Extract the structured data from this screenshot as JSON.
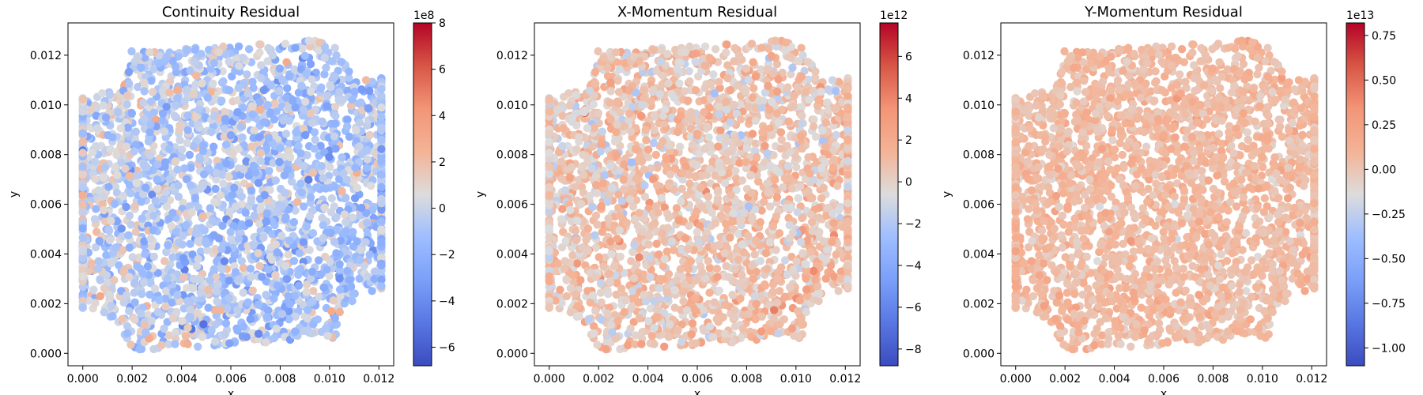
{
  "chart_data": [
    {
      "type": "scatter",
      "title": "Continuity Residual",
      "xlabel": "x",
      "ylabel": "y",
      "xlim": [
        -0.0006,
        0.0126
      ],
      "ylim": [
        -0.0005,
        0.0133
      ],
      "xticks": [
        "0.000",
        "0.002",
        "0.004",
        "0.006",
        "0.008",
        "0.010",
        "0.012"
      ],
      "yticks": [
        "0.000",
        "0.002",
        "0.004",
        "0.006",
        "0.008",
        "0.010",
        "0.012"
      ],
      "colormap": "coolwarm",
      "colorbar": {
        "exponent": "1e8",
        "vmin": -6.8,
        "vmax": 8.0,
        "ticks": [
          "−6",
          "−4",
          "−2",
          "0",
          "2",
          "4",
          "6",
          "8"
        ]
      },
      "field": "continuity"
    },
    {
      "type": "scatter",
      "title": "X-Momentum Residual",
      "xlabel": "x",
      "ylabel": "y",
      "xlim": [
        -0.0006,
        0.0126
      ],
      "ylim": [
        -0.0005,
        0.0133
      ],
      "xticks": [
        "0.000",
        "0.002",
        "0.004",
        "0.006",
        "0.008",
        "0.010",
        "0.012"
      ],
      "yticks": [
        "0.000",
        "0.002",
        "0.004",
        "0.006",
        "0.008",
        "0.010",
        "0.012"
      ],
      "colormap": "coolwarm",
      "colorbar": {
        "exponent": "1e12",
        "vmin": -8.8,
        "vmax": 7.6,
        "ticks": [
          "−8",
          "−6",
          "−4",
          "−2",
          "0",
          "2",
          "4",
          "6"
        ]
      },
      "field": "xmomentum"
    },
    {
      "type": "scatter",
      "title": "Y-Momentum Residual",
      "xlabel": "x",
      "ylabel": "y",
      "xlim": [
        -0.0006,
        0.0126
      ],
      "ylim": [
        -0.0005,
        0.0133
      ],
      "xticks": [
        "0.000",
        "0.002",
        "0.004",
        "0.006",
        "0.008",
        "0.010",
        "0.012"
      ],
      "yticks": [
        "0.000",
        "0.002",
        "0.004",
        "0.006",
        "0.008",
        "0.010",
        "0.012"
      ],
      "colormap": "coolwarm",
      "colorbar": {
        "exponent": "1e13",
        "vmin": -1.1,
        "vmax": 0.82,
        "ticks": [
          "−1.00",
          "−0.75",
          "−0.50",
          "−0.25",
          "0.00",
          "0.25",
          "0.50",
          "0.75"
        ]
      },
      "field": "ymomentum"
    }
  ]
}
